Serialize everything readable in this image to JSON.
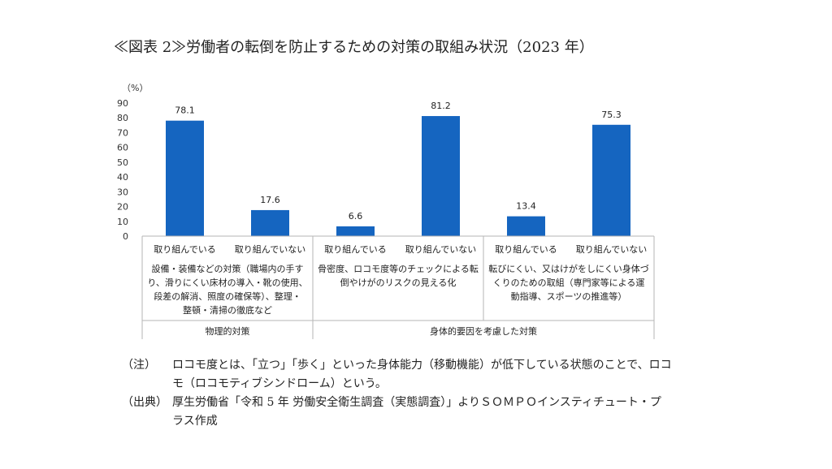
{
  "title": "≪図表 2≫労働者の転倒を防止するための対策の取組み状況（2023 年）",
  "chart_data": {
    "type": "bar",
    "unit_label": "（%）",
    "ylim": [
      0,
      90
    ],
    "yticks": [
      0,
      10,
      20,
      30,
      40,
      50,
      60,
      70,
      80,
      90
    ],
    "grid": false,
    "bar_color": "#1565c0",
    "categories": [
      "取り組んでいる",
      "取り組んでいない",
      "取り組んでいる",
      "取り組んでいない",
      "取り組んでいる",
      "取り組んでいない"
    ],
    "values": [
      78.1,
      17.6,
      6.6,
      81.2,
      13.4,
      75.3
    ],
    "data_labels": [
      "78.1",
      "17.6",
      "6.6",
      "81.2",
      "13.4",
      "75.3"
    ],
    "measures": [
      [
        "設備・装備などの対策（職場内の手す",
        "り、滑りにくい床材の導入・靴の使用、",
        "段差の解消、照度の確保等）、整理・",
        "整頓・清掃の徹底など"
      ],
      [
        "骨密度、ロコモ度等のチェックによる転",
        "倒やけがのリスクの見える化"
      ],
      [
        "転びにくい、又はけがをしにくい身体づ",
        "くりのための取組（専門家等による運",
        "動指導、スポーツの推進等）"
      ]
    ],
    "groups": [
      "物理的対策",
      "身体的要因を考慮した対策"
    ]
  },
  "notes": [
    {
      "label": "（注）",
      "lines": [
        "ロコモ度とは、「立つ」「歩く」といった身体能力（移動機能）が低下している状態のことで、ロコ",
        "モ（ロコモティブシンドローム）という。"
      ]
    },
    {
      "label": "（出典）",
      "lines": [
        "厚生労働省「令和 5 年 労働安全衛生調査（実態調査）」よりＳＯＭＰＯインスティチュート・プ",
        "ラス作成"
      ]
    }
  ]
}
